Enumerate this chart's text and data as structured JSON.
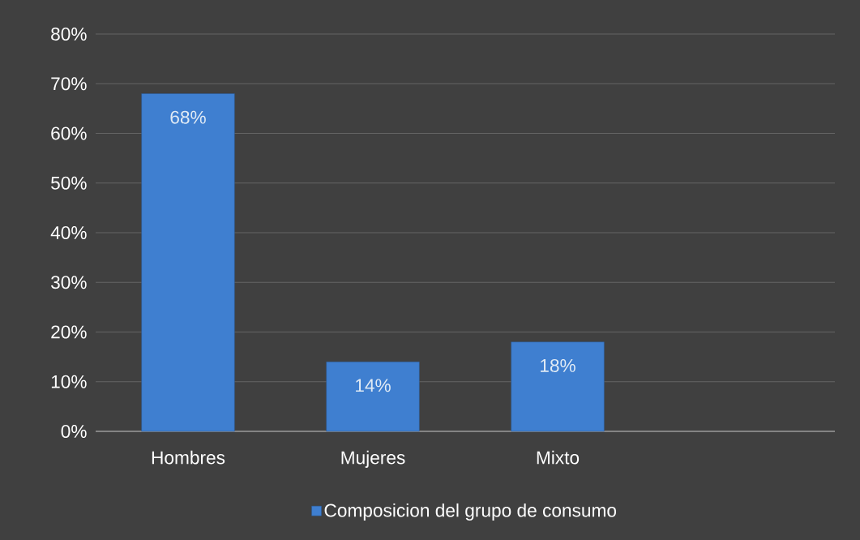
{
  "chart_data": {
    "type": "bar",
    "categories": [
      "Hombres",
      "Mujeres",
      "Mixto",
      null
    ],
    "series": [
      {
        "name": "Composicion del grupo de  consumo",
        "color": "#3f7fd0",
        "values": [
          68,
          14,
          18,
          null
        ],
        "value_labels": [
          "68%",
          "14%",
          "18%",
          null
        ]
      }
    ],
    "ylim": [
      0,
      80
    ],
    "yticks": [
      {
        "value": 0,
        "label": "0%"
      },
      {
        "value": 10,
        "label": "10%"
      },
      {
        "value": 20,
        "label": "20%"
      },
      {
        "value": 30,
        "label": "30%"
      },
      {
        "value": 40,
        "label": "40%"
      },
      {
        "value": 50,
        "label": "50%"
      },
      {
        "value": 60,
        "label": "60%"
      },
      {
        "value": 70,
        "label": "70%"
      },
      {
        "value": 80,
        "label": "80%"
      }
    ],
    "grid": "y",
    "legend": "bottom"
  }
}
